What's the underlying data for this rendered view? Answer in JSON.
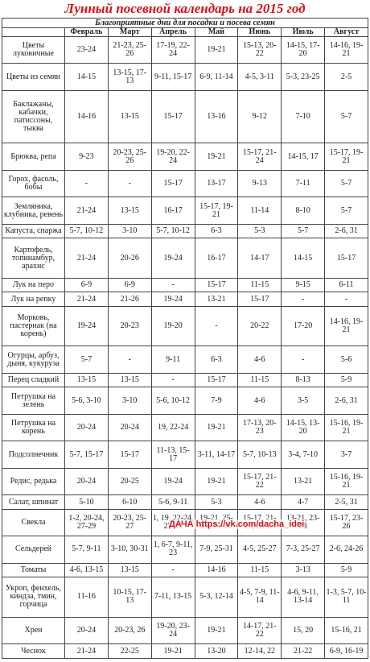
{
  "title": "Лунный посевной календарь на 2015 год",
  "subtitle": "Благоприятные дни для посадки и посева семян",
  "headers": [
    "Февраль",
    "Март",
    "Апрель",
    "Май",
    "Июнь",
    "Июль",
    "Август"
  ],
  "rows": [
    {
      "label": "Цветы луковичные",
      "cells": [
        "23-24",
        "21-23, 25-26",
        "17-19, 22-24",
        "19-21",
        "15-13, 20-22",
        "14-15, 17-20",
        "14-16, 19-21"
      ]
    },
    {
      "label": "Цветы из семян",
      "cells": [
        "14-15",
        "13-15, 17-13",
        "9-11, 15-17",
        "6-9, 11-14",
        "4-5, 3-11",
        "5-3, 23-25",
        "2-5"
      ]
    },
    {
      "label": "Баклажаны, кабачки, патиссоны, тыква",
      "cells": [
        "14-16",
        "13-15",
        "15-17",
        "13-16",
        "9-12",
        "7-10",
        "5-7"
      ]
    },
    {
      "label": "Брюква, репа",
      "cells": [
        "9-23",
        "20-23, 25-26",
        "19-20, 22-24",
        "19-21",
        "15-17, 21-24",
        "14-15, 17",
        "15-17, 19-21"
      ]
    },
    {
      "label": "Горох, фасоль, бобы",
      "cells": [
        "-",
        "-",
        "15-17",
        "13-17",
        "9-13",
        "7-11",
        "5-7"
      ]
    },
    {
      "label": "Земляника, клубника, ревень",
      "cells": [
        "21-24",
        "13-15",
        "16-17",
        "15-17, 19-21",
        "11-14",
        "8-10",
        "5-7"
      ]
    },
    {
      "label": "Капуста, спаржа",
      "cells": [
        "5-7, 10-12",
        "3-10",
        "5-7, 10-12",
        "6-3",
        "5-3",
        "5-7",
        "2-6, 31"
      ]
    },
    {
      "label": "Картофель, топинамбур, арахис",
      "cells": [
        "21-24",
        "20-26",
        "19-24",
        "16-17",
        "14-17",
        "14-15",
        "15-17"
      ]
    },
    {
      "label": "Лук на перо",
      "cells": [
        "6-9",
        "6-9",
        "-",
        "15-17",
        "11-15",
        "9-15",
        "6-11"
      ]
    },
    {
      "label": "Лук на репку",
      "cells": [
        "21-24",
        "21-26",
        "19-24",
        "13-21",
        "15-17",
        "-",
        "-"
      ]
    },
    {
      "label": "Морковь, пастернак (на корень)",
      "cells": [
        "19-24",
        "20-23",
        "19-20",
        "-",
        "20-22",
        "17-20",
        "14-16, 19-21"
      ]
    },
    {
      "label": "Огурцы, арбуз, дыня, кукуруза",
      "cells": [
        "5-7",
        "-",
        "9-11",
        "6-3",
        "4-6",
        "-",
        "5-6"
      ]
    },
    {
      "label": "Перец сладкий",
      "cells": [
        "13-15",
        "13-15",
        "-",
        "15-17",
        "11-15",
        "8-13",
        "5-9"
      ]
    },
    {
      "label": "Петрушка на зелень",
      "cells": [
        "5-6, 3-10",
        "3-10",
        "5-6, 10-12",
        "7-9",
        "4-6",
        "3-5",
        "2-6, 31"
      ]
    },
    {
      "label": "Петрушка на корень",
      "cells": [
        "20-24",
        "20-24",
        "19, 22-24",
        "19-21",
        "17-13, 20-23",
        "14-15, 13-20",
        "15-16, 19-21"
      ]
    },
    {
      "label": "Подсолнечник",
      "cells": [
        "5-7, 15-17",
        "15-17",
        "11-13, 15-17",
        "3-11, 14-17",
        "5-7, 10-13",
        "3-4, 7-10",
        "3-7"
      ]
    },
    {
      "label": "Редис, редька",
      "cells": [
        "20-24",
        "20-25",
        "19-24",
        "19-21",
        "15-17, 21-22",
        "13-21",
        "15-16, 19-21"
      ]
    },
    {
      "label": "Салат, шпинат",
      "cells": [
        "5-10",
        "6-10",
        "5-6, 9-11",
        "5-3",
        "4-6",
        "4-7",
        "2-5, 31"
      ]
    },
    {
      "label": "Свекла",
      "cells": [
        "1-2, 20-24, 27-29",
        "20-23, 25-27",
        "1, 19, 22-24, 27-30",
        "19-21, 25-27, 30-31",
        "15-17, 21-23, 26-23",
        "13-21, 23-23",
        "15-17, 23-26"
      ]
    },
    {
      "label": "Сельдерей",
      "cells": [
        "5-7, 9-11",
        "3-10, 30-31",
        "1, 6-7, 9-11, 23",
        "7-9, 25-31",
        "4-5, 25-27",
        "7-3, 25-27",
        "2-6, 24-26"
      ]
    },
    {
      "label": "Томаты",
      "cells": [
        "4-6, 13-15",
        "13-15",
        "-",
        "14-16",
        "11-15",
        "3-13",
        "5-9"
      ]
    },
    {
      "label": "Укроп, фенхель, киндза, тмин, горчица",
      "cells": [
        "11-16",
        "10-15, 17-13",
        "7-11, 13-15",
        "5-3, 12-14",
        "4-5, 7-9, 11-14",
        "4-6, 9-11, 13-14",
        "1-3, 5-7, 10-11"
      ]
    },
    {
      "label": "Хрен",
      "cells": [
        "20-24",
        "20-23, 26",
        "19-20, 23-24",
        "19-21",
        "14-17, 21-22",
        "15, 20",
        "15-16, 21"
      ]
    },
    {
      "label": "Чеснок",
      "cells": [
        "21-24",
        "22-25",
        "19-21",
        "13-20",
        "12-14, 22",
        "21-22",
        "6-9, 16-19"
      ]
    }
  ],
  "watermark": "ДАЧА https://vk.com/dacha_idei"
}
